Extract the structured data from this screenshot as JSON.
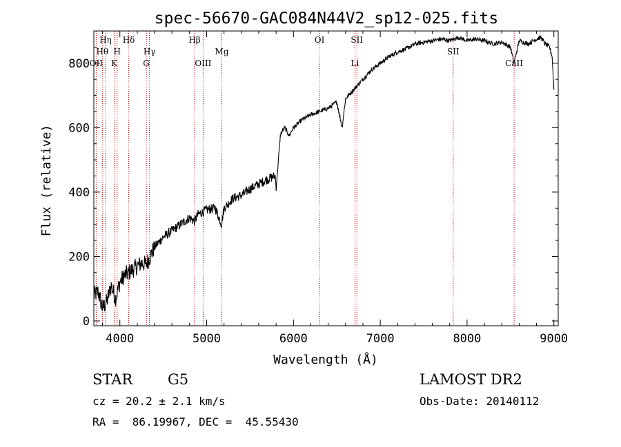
{
  "chart_data": {
    "type": "line",
    "title": "spec-56670-GAC084N44V2_sp12-025.fits",
    "xlabel": "Wavelength (Å)",
    "ylabel": "Flux (relative)",
    "xlim": [
      3700,
      9050
    ],
    "ylim": [
      -15,
      900
    ],
    "xticks": [
      4000,
      5000,
      6000,
      7000,
      8000,
      9000
    ],
    "yticks": [
      0,
      200,
      400,
      600,
      800
    ],
    "grid": false,
    "line_color": "#000000",
    "marker_color": "#cc0000",
    "series": [
      {
        "x": [
          3700,
          3750,
          3800,
          3850,
          3900,
          3950,
          4000,
          4050,
          4100,
          4150,
          4200,
          4250,
          4300,
          4350,
          4400,
          4500,
          4600,
          4700,
          4800,
          4860,
          4900,
          5000,
          5100,
          5170,
          5200,
          5300,
          5400,
          5500,
          5600,
          5700,
          5790,
          5800,
          5850,
          5900,
          5950,
          6000,
          6100,
          6200,
          6300,
          6400,
          6500,
          6560,
          6600,
          6700,
          6800,
          6900,
          7000,
          7100,
          7200,
          7300,
          7400,
          7500,
          7600,
          7700,
          7800,
          7900,
          8000,
          8100,
          8200,
          8300,
          8400,
          8500,
          8540,
          8600,
          8700,
          8800,
          8850,
          8900,
          8950,
          8980,
          9000
        ],
        "y": [
          80,
          90,
          40,
          60,
          110,
          70,
          120,
          140,
          150,
          160,
          170,
          180,
          175,
          200,
          230,
          260,
          280,
          300,
          320,
          310,
          330,
          345,
          350,
          300,
          350,
          380,
          390,
          410,
          425,
          440,
          450,
          410,
          580,
          600,
          575,
          600,
          625,
          640,
          650,
          660,
          680,
          600,
          690,
          720,
          750,
          780,
          800,
          820,
          835,
          845,
          860,
          865,
          870,
          875,
          870,
          880,
          870,
          875,
          870,
          860,
          865,
          850,
          800,
          870,
          860,
          875,
          880,
          860,
          850,
          820,
          720
        ]
      }
    ],
    "lines": [
      {
        "wl": 3727,
        "label": "OII",
        "row": 3
      },
      {
        "wl": 3798,
        "label": "Hθ",
        "row": 2
      },
      {
        "wl": 3835,
        "label": "Hη",
        "row": 1
      },
      {
        "wl": 3934,
        "label": "K",
        "row": 3
      },
      {
        "wl": 3968,
        "label": "H",
        "row": 2
      },
      {
        "wl": 4102,
        "label": "Hδ",
        "row": 1
      },
      {
        "wl": 4305,
        "label": "G",
        "row": 3
      },
      {
        "wl": 4341,
        "label": "Hγ",
        "row": 2
      },
      {
        "wl": 4861,
        "label": "Hβ",
        "row": 1
      },
      {
        "wl": 4959,
        "label": "OIII",
        "row": 3
      },
      {
        "wl": 5175,
        "label": "Mg",
        "row": 2
      },
      {
        "wl": 6300,
        "label": "OI",
        "row": 1
      },
      {
        "wl": 6708,
        "label": "Li",
        "row": 3
      },
      {
        "wl": 6731,
        "label": "SII",
        "row": 1
      },
      {
        "wl": 7840,
        "label": "SII",
        "row": 2
      },
      {
        "wl": 8542,
        "label": "CaII",
        "row": 3
      }
    ]
  },
  "info": {
    "object_class": "STAR",
    "subclass": "G5",
    "survey": "LAMOST DR2",
    "redshift": "cz = 20.2 ± 2.1 km/s",
    "obs_date": "Obs-Date: 20140112",
    "coords": "RA =  86.19967, DEC =  45.55430"
  }
}
